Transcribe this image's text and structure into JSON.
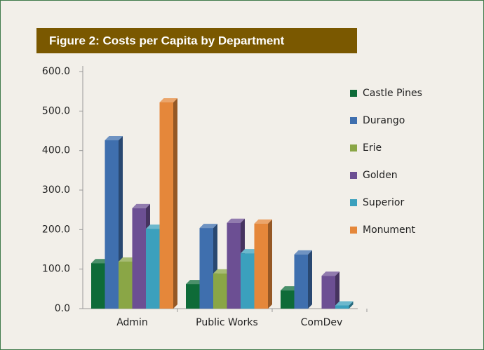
{
  "chart_data": {
    "type": "bar",
    "title": "Figure 2: Costs per Capita by Department",
    "categories": [
      "Admin",
      "Public Works",
      "ComDev"
    ],
    "series": [
      {
        "name": "Castle Pines",
        "color": "#0e6b38",
        "values": [
          115,
          62,
          46
        ]
      },
      {
        "name": "Durango",
        "color": "#3f6fae",
        "values": [
          426,
          204,
          137
        ]
      },
      {
        "name": "Erie",
        "color": "#8aa646",
        "values": [
          119,
          89,
          null
        ]
      },
      {
        "name": "Golden",
        "color": "#6c4f93",
        "values": [
          254,
          217,
          83
        ]
      },
      {
        "name": "Superior",
        "color": "#3ba0bd",
        "values": [
          202,
          140,
          8
        ]
      },
      {
        "name": "Monument",
        "color": "#e5873a",
        "values": [
          522,
          215,
          null
        ]
      }
    ],
    "ylim": [
      0,
      600
    ],
    "yticks": [
      {
        "value": 0,
        "label": "0.0"
      },
      {
        "value": 100,
        "label": "100.0"
      },
      {
        "value": 200,
        "label": "200.0"
      },
      {
        "value": 300,
        "label": "300.0"
      },
      {
        "value": 400,
        "label": "400.0"
      },
      {
        "value": 500,
        "label": "500.0"
      },
      {
        "value": 600,
        "label": "600.0"
      }
    ],
    "legend": "right"
  }
}
